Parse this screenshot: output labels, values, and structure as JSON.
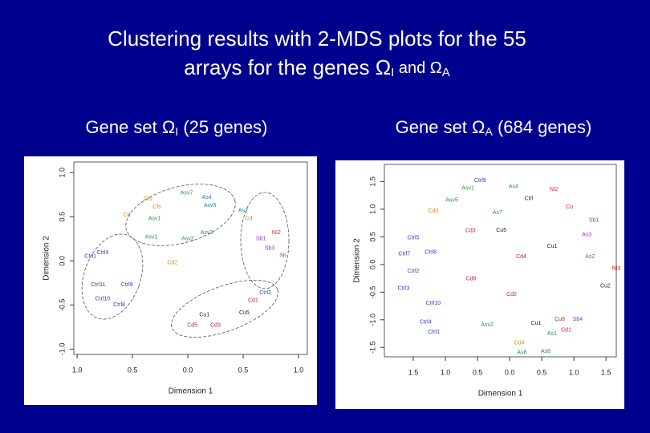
{
  "title": [
    "Clustering results with 2-MDS plots for the 55",
    "arrays for the genes Ω",
    "I",
    " and  Ω",
    "A"
  ],
  "chart_data": [
    {
      "type": "scatter",
      "heading": [
        "Gene set Ω",
        "I",
        "  (25 genes)"
      ],
      "xlabel": "Dimension 1",
      "ylabel": "Dimension 2",
      "xlim": [
        -1.03,
        1.08
      ],
      "ylim": [
        -1.06,
        1.12
      ],
      "xticks": [
        {
          "value": -1,
          "label": "1.0"
        },
        {
          "value": -0.5,
          "label": "0.5"
        },
        {
          "value": 0,
          "label": "0.0"
        },
        0.5,
        {
          "value": 1,
          "label": "1.0"
        }
      ],
      "yticks": [
        {
          "value": 1,
          "label": "1.0"
        },
        0.5,
        {
          "value": 0,
          "label": "0.0"
        },
        -0.5,
        {
          "value": -1,
          "label": "-1.0"
        }
      ],
      "x": [
        -0.01,
        0.17,
        0.2,
        -0.36,
        -0.28,
        -0.55,
        -0.3,
        0.17,
        0.5,
        0.55,
        0.8,
        0.66,
        -0.33,
        0.0,
        -0.77,
        -0.88,
        0.74,
        0.86,
        -0.55,
        -0.81,
        -0.77,
        -0.62,
        -0.14,
        0.7,
        0.15,
        0.04,
        0.25,
        0.51,
        0.59
      ],
      "values": [
        0.77,
        0.72,
        0.63,
        0.7,
        0.61,
        0.52,
        0.48,
        0.32,
        0.57,
        0.48,
        0.32,
        0.25,
        0.27,
        0.25,
        0.09,
        0.05,
        0.14,
        0.06,
        -0.27,
        -0.27,
        -0.43,
        -0.5,
        -0.02,
        -0.36,
        -0.61,
        -0.73,
        -0.73,
        -0.59,
        -0.45
      ],
      "point_labels": [
        "Asv7",
        "As4",
        "Asv5",
        "Cfs",
        "Cfs",
        "Cd",
        "Asv1",
        "Asv3",
        "As2",
        "Cd",
        "NI2",
        "Sb1",
        "Asv1",
        "Asv2",
        "Ctrl4",
        "Ctrl1",
        "Sb3",
        "NI",
        "Ctrl9",
        "Ctrl11",
        "Ctrl10",
        "Ctrl8",
        "Cd2",
        "Ctrl2",
        "Cu1",
        "Cd5",
        "Cd3",
        "Cu5",
        "Cd1"
      ],
      "point_colors": [
        "#1a8a8a",
        "#1a8a8a",
        "#1a8a8a",
        "#d08a1a",
        "#d08a1a",
        "#d08a1a",
        "#2e8b57",
        "#2e8b57",
        "#1a8a8a",
        "#d08a1a",
        "#cc2222",
        "#9b30c0",
        "#2e8b57",
        "#2e8b57",
        "#2a3fc0",
        "#2a3fc0",
        "#9b30c0",
        "#cc2222",
        "#2a3fc0",
        "#2a3fc0",
        "#2a3fc0",
        "#2a3fc0",
        "#d08a1a",
        "#2a3fc0",
        "#222222",
        "#cc2222",
        "#cc2222",
        "#222222",
        "#cc2222"
      ]
    },
    {
      "type": "scatter",
      "heading": [
        "Gene set Ω",
        "A",
        " (684 genes)"
      ],
      "xlabel": "Dimension 1",
      "ylabel": "Dimension 2",
      "xlim": [
        -1.95,
        1.66
      ],
      "ylim": [
        -1.67,
        1.81
      ],
      "xticks": [
        {
          "value": -1.5,
          "label": "1.5"
        },
        {
          "value": -1,
          "label": "1.0"
        },
        {
          "value": -0.5,
          "label": "0.5"
        },
        {
          "value": 0,
          "label": "0.0"
        },
        0.5,
        {
          "value": 1,
          "label": "1.0"
        },
        1.5
      ],
      "yticks": [
        1.5,
        {
          "value": 1,
          "label": "1.0"
        },
        0.5,
        {
          "value": 0,
          "label": "0.0"
        },
        -0.5,
        {
          "value": -1,
          "label": "-1.0"
        },
        -1.5
      ],
      "x": [
        -0.46,
        -0.65,
        0.06,
        0.69,
        0.3,
        -0.9,
        -1.19,
        -0.19,
        0.93,
        1.31,
        -0.61,
        -0.13,
        1.2,
        -1.5,
        -1.23,
        -1.64,
        0.66,
        0.18,
        1.25,
        1.66,
        -1.5,
        -0.6,
        1.49,
        -1.65,
        -1.19,
        0.03,
        0.78,
        1.06,
        -1.31,
        0.41,
        -0.35,
        -1.18,
        0.88,
        0.66,
        0.56,
        0.19,
        0.15
      ],
      "values": [
        1.52,
        1.38,
        1.41,
        1.36,
        1.19,
        1.16,
        0.97,
        0.94,
        1.04,
        0.8,
        0.61,
        0.62,
        0.54,
        0.48,
        0.22,
        0.19,
        0.33,
        0.14,
        0.14,
        -0.07,
        -0.12,
        -0.26,
        -0.39,
        -0.43,
        -0.7,
        -0.54,
        -0.99,
        -0.99,
        -1.04,
        -1.06,
        -1.09,
        -1.22,
        -1.19,
        -1.25,
        -1.57,
        -1.59,
        -1.42
      ],
      "point_labels": [
        "Ctrl9",
        "Asv1",
        "As4",
        "NI2",
        "Ctrl",
        "Asv5",
        "Cd3",
        "As7",
        "Cu",
        "Sb1",
        "Cd3",
        "Cu5",
        "As3",
        "Ctrl5",
        "Ctrl8",
        "Ctrl7",
        "Cu1",
        "Cd4",
        "As2",
        "NI3",
        "Ctrl2",
        "Cd6",
        "Cu2",
        "Ctrl3",
        "Ctrl10",
        "Cd2",
        "Cu6",
        "Sb4",
        "Ctrl4",
        "Cu1",
        "Asv2",
        "Ctrl1",
        "Cd1",
        "As1",
        "As6",
        "As8",
        "Cd4"
      ],
      "point_colors": [
        "#2a3fc0",
        "#2e8b57",
        "#1a8a8a",
        "#cc2222",
        "#222222",
        "#2e8b57",
        "#d08a1a",
        "#1a8a8a",
        "#cc2222",
        "#9b30c0",
        "#cc2222",
        "#222222",
        "#9b30c0",
        "#2a3fc0",
        "#2a3fc0",
        "#2a3fc0",
        "#222222",
        "#cc2222",
        "#1a8a8a",
        "#cc2222",
        "#2a3fc0",
        "#cc2222",
        "#222222",
        "#2a3fc0",
        "#2a3fc0",
        "#cc2222",
        "#cc2222",
        "#9b30c0",
        "#2a3fc0",
        "#222222",
        "#2e8b57",
        "#2a3fc0",
        "#cc2222",
        "#1a8a8a",
        "#1a8a8a",
        "#1a8a8a",
        "#d08a1a"
      ]
    }
  ]
}
